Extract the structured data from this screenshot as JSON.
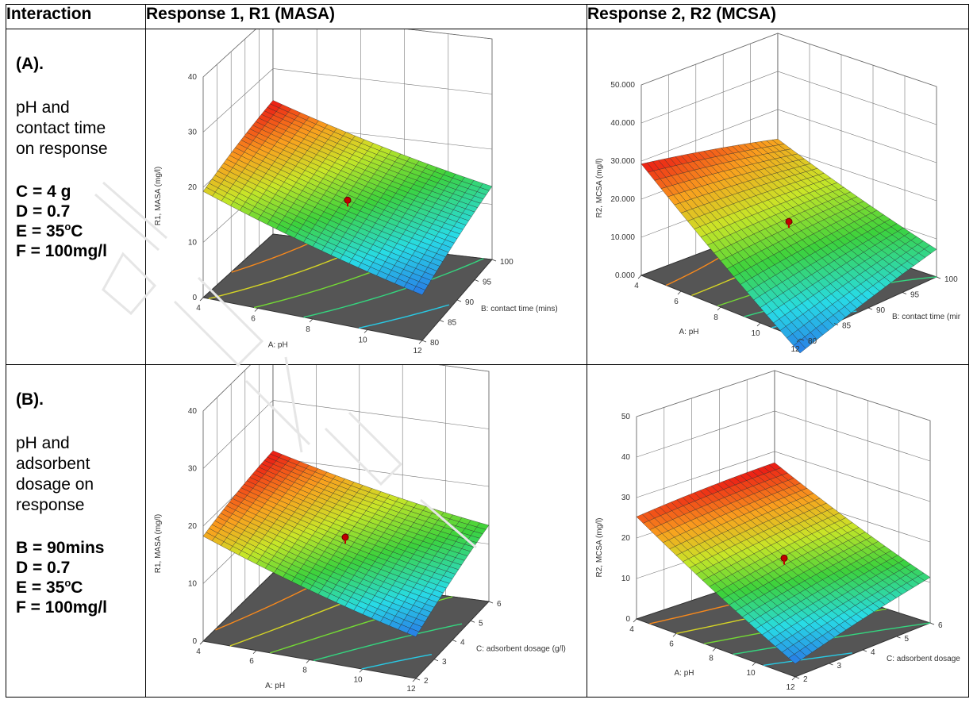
{
  "headers": {
    "interaction": "Interaction",
    "response1": "Response 1, R1 (MASA)",
    "response2": "Response 2, R2 (MCSA)"
  },
  "rows": [
    {
      "title": "(A).",
      "desc_lines": [
        "pH and",
        "contact time",
        "on response"
      ],
      "conds": [
        {
          "text": "C = 4 g",
          "sup": "",
          "after": ""
        },
        {
          "text": "D = 0.7",
          "sup": "",
          "after": ""
        },
        {
          "text": "E = 35",
          "sup": "o",
          "after": "C"
        },
        {
          "text": "F = 100mg/l",
          "sup": "",
          "after": ""
        }
      ]
    },
    {
      "title": "(B).",
      "desc_lines": [
        "pH and",
        "adsorbent",
        "dosage on",
        "response"
      ],
      "conds": [
        {
          "text": "B = 90mins",
          "sup": "",
          "after": ""
        },
        {
          "text": "D = 0.7",
          "sup": "",
          "after": ""
        },
        {
          "text": "E = 35",
          "sup": "o",
          "after": "C"
        },
        {
          "text": "F = 100mg/l",
          "sup": "",
          "after": ""
        }
      ]
    }
  ],
  "chart_data": [
    {
      "type": "surface3d",
      "panel": "A-R1",
      "zlabel": "R1, MASA (mg/l)",
      "xlabel": "A: pH",
      "ylabel": "B: contact time (mins)",
      "zticks": [
        "0",
        "10",
        "20",
        "30",
        "40"
      ],
      "xticks": [
        "4",
        "6",
        "8",
        "10",
        "12"
      ],
      "yticks": [
        "80",
        "85",
        "90",
        "95",
        "100"
      ],
      "zlim": [
        0,
        40
      ],
      "surface_corners": {
        "x4_ymin": 19,
        "x12_ymin": 8,
        "x4_ymax": 24,
        "x12_ymax": 13
      },
      "design_point_z": 15
    },
    {
      "type": "surface3d",
      "panel": "A-R2",
      "zlabel": "R2, MCSA (mg/l)",
      "xlabel": "A: pH",
      "ylabel": "B: contact time (mins)",
      "zticks": [
        "0.000",
        "10.000",
        "20.000",
        "30.000",
        "40.000",
        "50.000"
      ],
      "xticks": [
        "4",
        "6",
        "8",
        "10",
        "12"
      ],
      "yticks": [
        "80",
        "85",
        "90",
        "95",
        "100"
      ],
      "zlim": [
        0,
        50
      ],
      "surface_corners": {
        "x4_ymin": 29,
        "x12_ymin": -4,
        "x4_ymax": 22,
        "x12_ymax": 7
      },
      "design_point_z": 15
    },
    {
      "type": "surface3d",
      "panel": "B-R1",
      "zlabel": "R1, MASA (mg/l)",
      "xlabel": "A: pH",
      "ylabel": "C: adsorbent dosage (g/l)",
      "zticks": [
        "0",
        "10",
        "20",
        "30",
        "40"
      ],
      "xticks": [
        "4",
        "6",
        "8",
        "10",
        "12"
      ],
      "yticks": [
        "2",
        "3",
        "4",
        "5",
        "6"
      ],
      "zlim": [
        0,
        40
      ],
      "surface_corners": {
        "x4_ymin": 18,
        "x12_ymin": 7,
        "x4_ymax": 21,
        "x12_ymax": 13
      },
      "design_point_z": 15
    },
    {
      "type": "surface3d",
      "panel": "B-R2",
      "zlabel": "R2, MCSA (mg/l)",
      "xlabel": "A: pH",
      "ylabel": "C: adsorbent dosage (g/l)",
      "zticks": [
        "0",
        "10",
        "20",
        "30",
        "40",
        "50"
      ],
      "xticks": [
        "4",
        "6",
        "8",
        "10",
        "12"
      ],
      "yticks": [
        "2",
        "3",
        "4",
        "5",
        "6"
      ],
      "zlim": [
        0,
        50
      ],
      "surface_corners": {
        "x4_ymin": 25,
        "x12_ymin": 3,
        "x4_ymax": 27,
        "x12_ymax": 11
      },
      "design_point_z": 16
    }
  ]
}
